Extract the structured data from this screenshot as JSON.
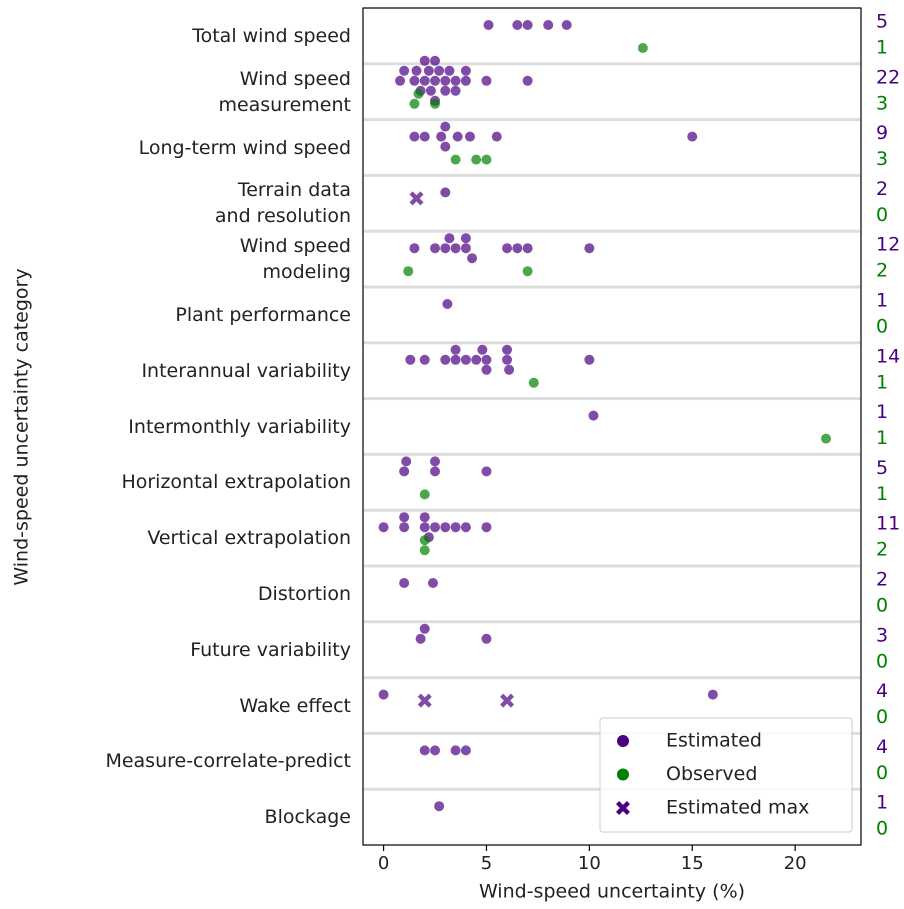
{
  "chart_data": {
    "type": "swarm",
    "xlabel": "Wind-speed uncertainty (%)",
    "ylabel": "Wind-speed uncertainty category",
    "categories": [
      "Total wind speed",
      "Wind speed\nmeasurement",
      "Long-term wind speed",
      "Terrain data\nand resolution",
      "Wind speed\nmodeling",
      "Plant performance",
      "Interannual variability",
      "Intermonthly variability",
      "Horizontal extrapolation",
      "Vertical extrapolation",
      "Distortion",
      "Future variability",
      "Wake effect",
      "Measure-correlate-predict",
      "Blockage"
    ],
    "xlim": [
      -1,
      23.2
    ],
    "xticks": [
      0,
      5,
      10,
      15,
      20
    ],
    "legend": "lower right",
    "series": [
      {
        "name": "Estimated",
        "color": "#4b0082",
        "marker": "circle",
        "values": [
          [
            5.1,
            6.5,
            7.0,
            8.0,
            8.9
          ],
          [
            0.8,
            1.0,
            1.5,
            1.6,
            1.8,
            2.0,
            2.0,
            2.2,
            2.3,
            2.5,
            2.5,
            2.5,
            2.7,
            3.0,
            3.0,
            3.2,
            3.5,
            3.5,
            4.0,
            4.0,
            5.0,
            7.0
          ],
          [
            1.5,
            2.0,
            2.8,
            3.0,
            3.0,
            3.6,
            4.2,
            5.5,
            15.0
          ],
          [
            3.0
          ],
          [
            1.5,
            2.5,
            3.0,
            3.2,
            3.5,
            4.0,
            4.0,
            4.3,
            6.0,
            6.5,
            7.0,
            10.0
          ],
          [
            3.1
          ],
          [
            1.3,
            2.0,
            3.0,
            3.5,
            3.5,
            4.0,
            4.5,
            4.8,
            5.0,
            5.0,
            6.0,
            6.0,
            6.1,
            10.0
          ],
          [
            10.2
          ],
          [
            1.0,
            1.1,
            2.5,
            2.5,
            5.0
          ],
          [
            0.0,
            1.0,
            1.0,
            2.0,
            2.0,
            2.2,
            2.5,
            3.0,
            3.5,
            4.0,
            5.0
          ],
          [
            1.0,
            2.4
          ],
          [
            1.8,
            2.0,
            5.0
          ],
          [
            0.0,
            16.0
          ],
          [
            2.0,
            2.5,
            3.5,
            4.0
          ],
          [
            2.7
          ]
        ],
        "counts": [
          5,
          22,
          9,
          2,
          12,
          1,
          14,
          1,
          5,
          11,
          2,
          3,
          4,
          4,
          1
        ]
      },
      {
        "name": "Observed",
        "color": "#008000",
        "marker": "circle",
        "values": [
          [
            12.6
          ],
          [
            1.5,
            1.7,
            2.5
          ],
          [
            3.5,
            4.5,
            5.0
          ],
          [],
          [
            1.2,
            7.0
          ],
          [],
          [
            7.3
          ],
          [
            21.5
          ],
          [
            2.0
          ],
          [
            2.0,
            2.0
          ],
          [],
          [],
          [],
          [],
          []
        ],
        "counts": [
          1,
          3,
          3,
          0,
          2,
          0,
          1,
          1,
          1,
          2,
          0,
          0,
          0,
          0,
          0
        ]
      },
      {
        "name": "Estimated max",
        "color": "#4b0082",
        "marker": "x",
        "values": [
          [],
          [],
          [],
          [
            1.6
          ],
          [],
          [],
          [],
          [],
          [],
          [],
          [],
          [],
          [
            2.0,
            6.0
          ],
          [],
          []
        ]
      }
    ]
  }
}
